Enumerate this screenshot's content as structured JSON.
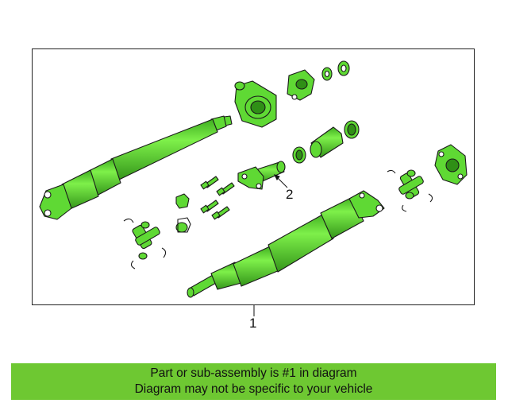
{
  "diagram": {
    "callouts": [
      {
        "number": "1",
        "target": "driveshaft-assembly"
      },
      {
        "number": "2",
        "target": "slip-yoke-shaft"
      }
    ],
    "part_color": "#5fd934",
    "outline_color": "#1a1a1a",
    "frame_color": "#222222"
  },
  "banner": {
    "line1": "Part or sub-assembly is #1 in diagram",
    "line2": "Diagram may not be specific to your vehicle",
    "background": "#6ec832"
  }
}
